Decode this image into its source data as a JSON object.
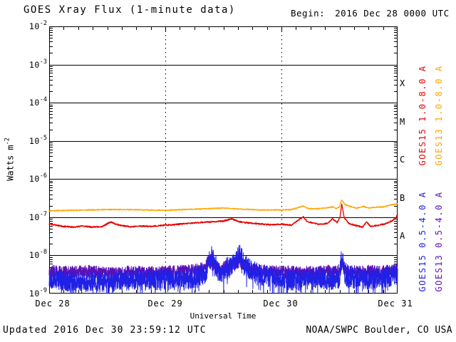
{
  "title": "GOES Xray Flux (1-minute data)",
  "begin_label": "Begin:",
  "begin_value": "2016 Dec 28 0000 UTC",
  "footer": {
    "updated": "Updated 2016 Dec 30 23:59:12 UTC",
    "credit": "NOAA/SWPC Boulder, CO USA"
  },
  "chart_data": {
    "type": "line",
    "title": "GOES Xray Flux (1-minute data)",
    "xlabel": "Universal Time",
    "ylabel_base": "Watts m",
    "ylabel_exp": "-2",
    "x_range_hours": [
      0,
      72
    ],
    "y_log_range": [
      -9,
      -2
    ],
    "grid": {
      "h_lines_log": [
        -3,
        -4,
        -5,
        -6,
        -7,
        -8
      ],
      "v_dashed_hours": [
        24,
        48
      ],
      "minor_x_hours": 3
    },
    "x_ticks": [
      {
        "label": "Dec 28",
        "hour": 0
      },
      {
        "label": "Dec 29",
        "hour": 24
      },
      {
        "label": "Dec 30",
        "hour": 48
      },
      {
        "label": "Dec 31",
        "hour": 72
      }
    ],
    "y_ticks": [
      {
        "base": "10",
        "exp": "-2",
        "value": -2
      },
      {
        "base": "10",
        "exp": "-3",
        "value": -3
      },
      {
        "base": "10",
        "exp": "-4",
        "value": -4
      },
      {
        "base": "10",
        "exp": "-5",
        "value": -5
      },
      {
        "base": "10",
        "exp": "-6",
        "value": -6
      },
      {
        "base": "10",
        "exp": "-7",
        "value": -7
      },
      {
        "base": "10",
        "exp": "-8",
        "value": -8
      },
      {
        "base": "10",
        "exp": "-9",
        "value": -9
      }
    ],
    "flare_classes": [
      {
        "label": "X",
        "log_center": -3.5
      },
      {
        "label": "M",
        "log_center": -4.5
      },
      {
        "label": "C",
        "log_center": -5.5
      },
      {
        "label": "B",
        "log_center": -6.5
      },
      {
        "label": "A",
        "log_center": -7.5
      }
    ],
    "legend": [
      {
        "label": "GOES15 1.0-8.0 A",
        "color": "#e60000"
      },
      {
        "label": "GOES13 1.0-8.0 A",
        "color": "#ffa500"
      },
      {
        "label": "GOES15 0.5-4.0 A",
        "color": "#2020e6"
      },
      {
        "label": "GOES13 0.5-4.0 A",
        "color": "#5c10b4"
      }
    ],
    "series": [
      {
        "name": "GOES13 1.0-8.0 A",
        "color": "#ffa500",
        "width": 1.3,
        "noise": 0.013,
        "seed": 11,
        "step": 0.05,
        "spiky": false,
        "points": [
          [
            0,
            -6.83
          ],
          [
            4,
            -6.82
          ],
          [
            8,
            -6.81
          ],
          [
            12,
            -6.8
          ],
          [
            16,
            -6.8
          ],
          [
            20,
            -6.81
          ],
          [
            24,
            -6.82
          ],
          [
            28,
            -6.8
          ],
          [
            32,
            -6.78
          ],
          [
            36,
            -6.76
          ],
          [
            40,
            -6.79
          ],
          [
            44,
            -6.81
          ],
          [
            48,
            -6.81
          ],
          [
            50,
            -6.8
          ],
          [
            52.5,
            -6.71
          ],
          [
            53.5,
            -6.77
          ],
          [
            55,
            -6.78
          ],
          [
            57,
            -6.76
          ],
          [
            58.6,
            -6.73
          ],
          [
            59.3,
            -6.77
          ],
          [
            60,
            -6.73
          ],
          [
            60.4,
            -6.55
          ],
          [
            61.2,
            -6.67
          ],
          [
            62.5,
            -6.73
          ],
          [
            63.5,
            -6.76
          ],
          [
            65,
            -6.72
          ],
          [
            66,
            -6.76
          ],
          [
            67.5,
            -6.74
          ],
          [
            69,
            -6.73
          ],
          [
            70.5,
            -6.68
          ],
          [
            71.5,
            -6.66
          ],
          [
            72,
            -6.64
          ]
        ]
      },
      {
        "name": "GOES15 1.0-8.0 A",
        "color": "#e60000",
        "width": 1.3,
        "noise": 0.018,
        "seed": 23,
        "step": 0.05,
        "spiky": false,
        "points": [
          [
            0,
            -7.17
          ],
          [
            1.5,
            -7.21
          ],
          [
            3,
            -7.24
          ],
          [
            5,
            -7.26
          ],
          [
            7,
            -7.23
          ],
          [
            9,
            -7.26
          ],
          [
            11,
            -7.24
          ],
          [
            12.8,
            -7.12
          ],
          [
            13.5,
            -7.17
          ],
          [
            15,
            -7.22
          ],
          [
            17,
            -7.25
          ],
          [
            19,
            -7.23
          ],
          [
            21,
            -7.24
          ],
          [
            24,
            -7.21
          ],
          [
            26,
            -7.19
          ],
          [
            28,
            -7.17
          ],
          [
            30,
            -7.15
          ],
          [
            32,
            -7.13
          ],
          [
            34,
            -7.12
          ],
          [
            36,
            -7.1
          ],
          [
            37.8,
            -7.04
          ],
          [
            39,
            -7.11
          ],
          [
            40.5,
            -7.14
          ],
          [
            42,
            -7.16
          ],
          [
            44,
            -7.18
          ],
          [
            46,
            -7.2
          ],
          [
            48,
            -7.18
          ],
          [
            50,
            -7.21
          ],
          [
            52.5,
            -6.99
          ],
          [
            53.3,
            -7.11
          ],
          [
            54.5,
            -7.15
          ],
          [
            56,
            -7.19
          ],
          [
            57.5,
            -7.16
          ],
          [
            58.6,
            -7.04
          ],
          [
            59.5,
            -7.14
          ],
          [
            60.1,
            -7.01
          ],
          [
            60.45,
            -6.65
          ],
          [
            61,
            -7.02
          ],
          [
            62,
            -7.17
          ],
          [
            63.5,
            -7.22
          ],
          [
            64.8,
            -7.26
          ],
          [
            65.6,
            -7.12
          ],
          [
            66.4,
            -7.24
          ],
          [
            68,
            -7.21
          ],
          [
            69.5,
            -7.17
          ],
          [
            70.8,
            -7.1
          ],
          [
            71.6,
            -7.02
          ],
          [
            72,
            -6.93
          ]
        ]
      },
      {
        "name": "GOES13 0.5-4.0 A",
        "color": "#5c10b4",
        "width": 1,
        "noise": 0.17,
        "seed": 37,
        "step": 0.03,
        "spiky": false,
        "points": [
          [
            0,
            -8.42
          ],
          [
            4,
            -8.45
          ],
          [
            8,
            -8.42
          ],
          [
            12,
            -8.48
          ],
          [
            16,
            -8.44
          ],
          [
            20,
            -8.46
          ],
          [
            24,
            -8.44
          ],
          [
            28,
            -8.42
          ],
          [
            31,
            -8.38
          ],
          [
            33,
            -8.16
          ],
          [
            34,
            -8.28
          ],
          [
            35.5,
            -8.33
          ],
          [
            37,
            -8.3
          ],
          [
            39.3,
            -8.16
          ],
          [
            40.5,
            -8.28
          ],
          [
            42,
            -8.36
          ],
          [
            44,
            -8.4
          ],
          [
            48,
            -8.44
          ],
          [
            52,
            -8.45
          ],
          [
            56,
            -8.43
          ],
          [
            60,
            -8.4
          ],
          [
            60.5,
            -8.25
          ],
          [
            62,
            -8.42
          ],
          [
            64,
            -8.44
          ],
          [
            66,
            -8.42
          ],
          [
            68,
            -8.44
          ],
          [
            70,
            -8.42
          ],
          [
            72,
            -8.4
          ]
        ]
      },
      {
        "name": "GOES15 0.5-4.0 A",
        "color": "#2020e6",
        "width": 1,
        "noise": 0.28,
        "seed": 53,
        "step": 0.03,
        "spiky": true,
        "points": [
          [
            0,
            -8.58
          ],
          [
            3,
            -8.66
          ],
          [
            6,
            -8.72
          ],
          [
            9,
            -8.65
          ],
          [
            12,
            -8.72
          ],
          [
            15,
            -8.65
          ],
          [
            18,
            -8.62
          ],
          [
            21,
            -8.66
          ],
          [
            24,
            -8.62
          ],
          [
            27,
            -8.66
          ],
          [
            30,
            -8.58
          ],
          [
            32.5,
            -8.45
          ],
          [
            33.2,
            -7.95
          ],
          [
            34,
            -8.12
          ],
          [
            34.8,
            -8.35
          ],
          [
            35.5,
            -8.45
          ],
          [
            36.5,
            -8.35
          ],
          [
            37.5,
            -8.28
          ],
          [
            39.3,
            -7.97
          ],
          [
            40,
            -8.12
          ],
          [
            40.8,
            -8.28
          ],
          [
            42,
            -8.42
          ],
          [
            44,
            -8.52
          ],
          [
            46,
            -8.58
          ],
          [
            48,
            -8.6
          ],
          [
            50,
            -8.64
          ],
          [
            52,
            -8.66
          ],
          [
            54,
            -8.62
          ],
          [
            56,
            -8.6
          ],
          [
            58,
            -8.62
          ],
          [
            60,
            -8.58
          ],
          [
            60.45,
            -8.05
          ],
          [
            61.2,
            -8.52
          ],
          [
            63,
            -8.6
          ],
          [
            65,
            -8.62
          ],
          [
            67,
            -8.6
          ],
          [
            69,
            -8.58
          ],
          [
            70.5,
            -8.54
          ],
          [
            72,
            -8.48
          ]
        ]
      }
    ]
  }
}
